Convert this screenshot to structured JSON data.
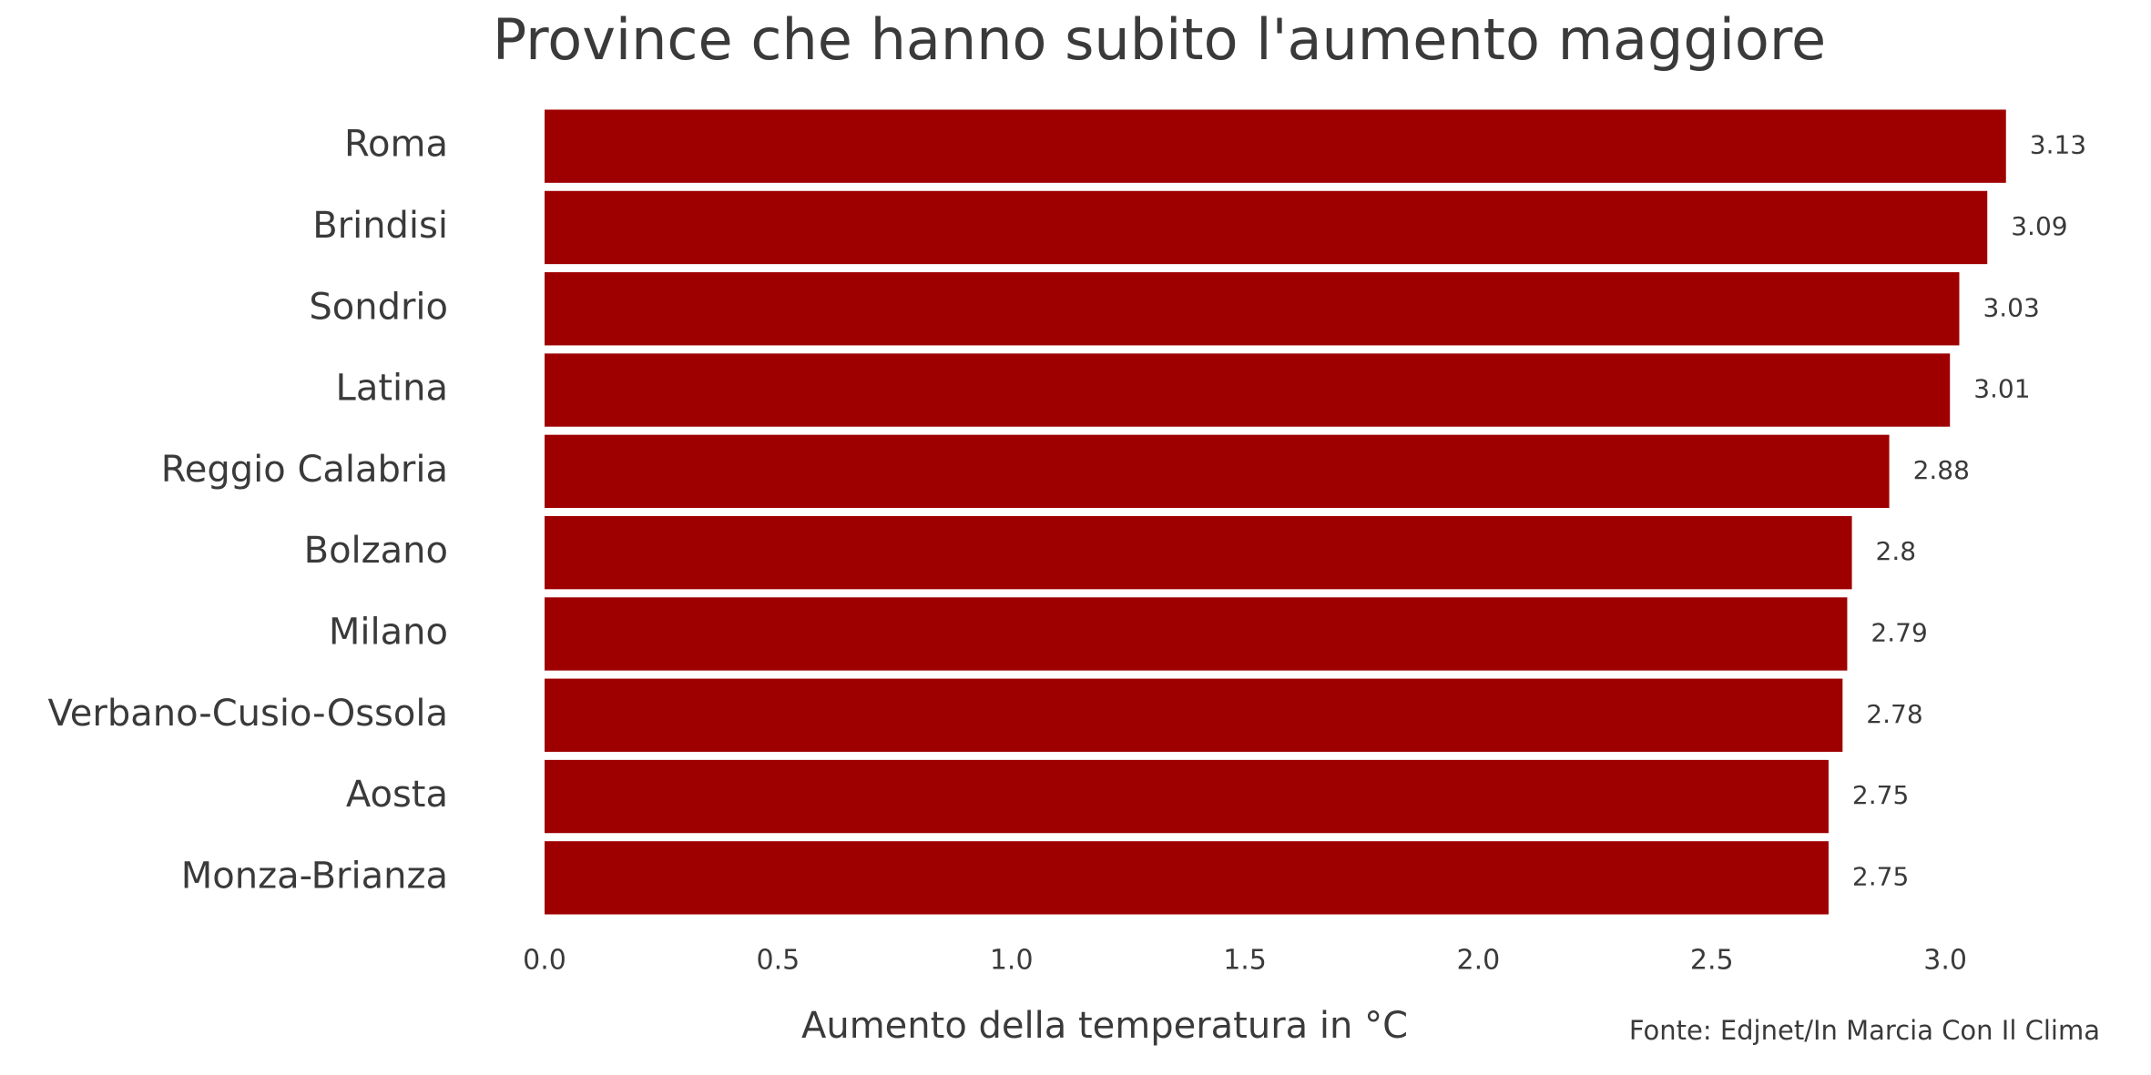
{
  "chart_data": {
    "type": "barh",
    "title": "Province che hanno subito l'aumento maggiore",
    "x_label": "Aumento della temperatura in °C",
    "source": "Fonte: Edjnet/In Marcia Con Il Clima",
    "categories": [
      "Roma",
      "Brindisi",
      "Sondrio",
      "Latina",
      "Reggio Calabria",
      "Bolzano",
      "Milano",
      "Verbano-Cusio-Ossola",
      "Aosta",
      "Monza-Brianza"
    ],
    "values": [
      3.13,
      3.09,
      3.03,
      3.01,
      2.88,
      2.8,
      2.79,
      2.78,
      2.75,
      2.75
    ],
    "color": "#9e0000",
    "xlim": [
      0,
      3.3
    ],
    "xticks": [
      {
        "value": 0,
        "label": "0.0"
      },
      {
        "value": 0.5,
        "label": "0.5"
      },
      {
        "value": 1,
        "label": "1.0"
      },
      {
        "value": 1.5,
        "label": "1.5"
      },
      {
        "value": 2,
        "label": "2.0"
      },
      {
        "value": 2.5,
        "label": "2.5"
      },
      {
        "value": 3,
        "label": "3.0"
      }
    ],
    "grid": false
  }
}
